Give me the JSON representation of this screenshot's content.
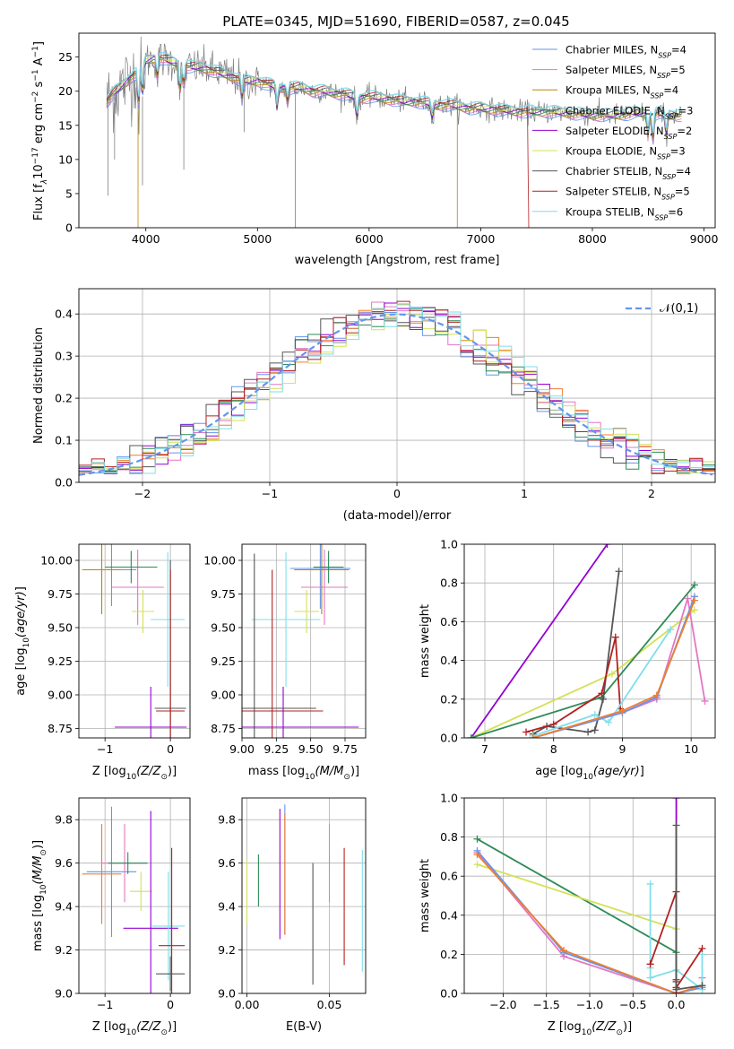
{
  "title": "PLATE=0345, MJD=51690, FIBERID=0587, z=0.045",
  "colors": {
    "Chabrier MILES": "#6495ed",
    "Salpeter MILES": "#e377c2",
    "Kroupa MILES": "#b8860b",
    "Chabrier ELODIE": "#2e8b57",
    "Salpeter ELODIE": "#9400d3",
    "Kroupa ELODIE": "#d4e157",
    "Chabrier STELIB": "#555555",
    "Salpeter STELIB": "#b22222",
    "Kroupa STELIB": "#80deea",
    "orange": "#f07f2f",
    "normal": "#6495ed"
  },
  "chart_data": [
    {
      "id": "spectrum",
      "type": "line",
      "title": "PLATE=0345, MJD=51690, FIBERID=0587, z=0.045",
      "xlabel": "wavelength [Angstrom, rest frame]",
      "ylabel_parts": [
        "Flux [f",
        "λ",
        "10",
        "−17",
        " erg cm",
        "−2",
        " s",
        "−1",
        " A",
        "−1",
        "]"
      ],
      "xlim": [
        3400,
        9100
      ],
      "ylim": [
        0,
        28.5
      ],
      "xticks": [
        4000,
        5000,
        6000,
        7000,
        8000,
        9000
      ],
      "yticks": [
        0,
        5,
        10,
        15,
        20,
        25
      ],
      "legend": [
        {
          "name": "Chabrier MILES",
          "nssp": "4"
        },
        {
          "name": "Salpeter MILES",
          "nssp": "5"
        },
        {
          "name": "Kroupa MILES",
          "nssp": "4"
        },
        {
          "name": "Chabrier ELODIE",
          "nssp": "3"
        },
        {
          "name": "Salpeter ELODIE",
          "nssp": "2"
        },
        {
          "name": "Kroupa ELODIE",
          "nssp": "3"
        },
        {
          "name": "Chabrier STELIB",
          "nssp": "4"
        },
        {
          "name": "Salpeter STELIB",
          "nssp": "5"
        },
        {
          "name": "Kroupa STELIB",
          "nssp": "6"
        }
      ],
      "nssp_label": "N",
      "nssp_sub": "SSP",
      "legend_placement": "top-right",
      "continuum": [
        [
          3650,
          18.5
        ],
        [
          3700,
          19.5
        ],
        [
          3800,
          21
        ],
        [
          3900,
          22.5
        ],
        [
          3950,
          24
        ],
        [
          4000,
          24.5
        ],
        [
          4100,
          25
        ],
        [
          4200,
          24.5
        ],
        [
          4300,
          24
        ],
        [
          4400,
          23.5
        ],
        [
          4500,
          23.5
        ],
        [
          4600,
          23
        ],
        [
          4700,
          22.5
        ],
        [
          4800,
          22
        ],
        [
          4900,
          21.5
        ],
        [
          5000,
          21.5
        ],
        [
          5100,
          21
        ],
        [
          5200,
          20.5
        ],
        [
          5300,
          20.5
        ],
        [
          5400,
          20.5
        ],
        [
          5500,
          20
        ],
        [
          5600,
          20
        ],
        [
          5700,
          19.7
        ],
        [
          5800,
          19.5
        ],
        [
          5900,
          19
        ],
        [
          6000,
          19.2
        ],
        [
          6100,
          19
        ],
        [
          6200,
          18.8
        ],
        [
          6300,
          18.5
        ],
        [
          6400,
          18.5
        ],
        [
          6500,
          18.3
        ],
        [
          6600,
          18
        ],
        [
          6700,
          18
        ],
        [
          6800,
          17.8
        ],
        [
          6900,
          17.5
        ],
        [
          7000,
          17.5
        ],
        [
          7200,
          17.2
        ],
        [
          7400,
          17
        ],
        [
          7600,
          17
        ],
        [
          7800,
          16.8
        ],
        [
          8000,
          16.5
        ],
        [
          8200,
          16.5
        ],
        [
          8400,
          16.8
        ],
        [
          8600,
          16.7
        ],
        [
          8800,
          16.5
        ]
      ]
    },
    {
      "id": "residual-hist",
      "type": "step-histogram",
      "xlabel": "(data-model)/error",
      "ylabel": "Normed distribution",
      "xlim": [
        -2.5,
        2.5
      ],
      "ylim": [
        0,
        0.46
      ],
      "xticks": [
        -2,
        -1,
        0,
        1,
        2
      ],
      "yticks": [
        0.0,
        0.1,
        0.2,
        0.3,
        0.4
      ],
      "grid": true,
      "legend_label": "𝒩(0,1)",
      "legend_placement": "top-right",
      "bin_width": 0.1,
      "normal": {
        "mean": 0,
        "sigma": 1
      }
    },
    {
      "id": "age-vs-z",
      "type": "errorbar",
      "xlabel_text": "Z [log",
      "ylabel_text": "age  [log",
      "xlim": [
        -1.4,
        0.3
      ],
      "ylim": [
        8.68,
        10.12
      ],
      "xticks": [
        -1,
        0
      ],
      "yticks": [
        8.75,
        9.0,
        9.25,
        9.5,
        9.75,
        10.0
      ],
      "grid": true,
      "points": [
        {
          "model": "Chabrier MILES",
          "x": -0.9,
          "xerr": 0.38,
          "y": 9.93,
          "yerr": 0.27
        },
        {
          "model": "Salpeter MILES",
          "x": -0.5,
          "xerr": 0.4,
          "y": 9.8,
          "yerr": 0.28
        },
        {
          "model": "Kroupa MILES",
          "x": -1.05,
          "xerr": 0.3,
          "y": 9.93,
          "yerr": 0.33
        },
        {
          "model": "Chabrier ELODIE",
          "x": -0.6,
          "xerr": 0.4,
          "y": 9.95,
          "yerr": 0.12
        },
        {
          "model": "Kroupa ELODIE",
          "x": -0.42,
          "xerr": 0.17,
          "y": 9.62,
          "yerr": 0.16
        },
        {
          "model": "Kroupa STELIB",
          "x": -0.04,
          "xerr": 0.26,
          "y": 9.56,
          "yerr": 0.5
        },
        {
          "model": "Chabrier STELIB",
          "x": 0.0,
          "xerr": 0.24,
          "y": 8.9,
          "yerr": 1.1
        },
        {
          "model": "Salpeter STELIB",
          "x": 0.0,
          "xerr": 0.22,
          "y": 8.88,
          "yerr": 1.05
        },
        {
          "model": "Salpeter ELODIE",
          "x": -0.3,
          "xerr": 0.55,
          "y": 8.76,
          "yerr": 0.3
        }
      ]
    },
    {
      "id": "age-vs-mass",
      "type": "errorbar",
      "xlabel_text": "mass [log",
      "xlim": [
        9.0,
        9.9
      ],
      "ylim": [
        8.68,
        10.12
      ],
      "xticks": [
        9.0,
        9.25,
        9.5,
        9.75
      ],
      "yticks": [
        8.75,
        9.0,
        9.25,
        9.5,
        9.75,
        10.0
      ],
      "grid": true,
      "points": [
        {
          "model": "Chabrier MILES",
          "x": 9.57,
          "xerr": 0.22,
          "y": 9.94,
          "yerr": 0.3
        },
        {
          "model": "Salpeter MILES",
          "x": 9.6,
          "xerr": 0.17,
          "y": 9.8,
          "yerr": 0.28
        },
        {
          "model": "Kroupa MILES",
          "x": 9.58,
          "xerr": 0.2,
          "y": 9.93,
          "yerr": 0.33
        },
        {
          "model": "Chabrier ELODIE",
          "x": 9.63,
          "xerr": 0.11,
          "y": 9.95,
          "yerr": 0.12
        },
        {
          "model": "Kroupa ELODIE",
          "x": 9.47,
          "xerr": 0.09,
          "y": 9.62,
          "yerr": 0.16
        },
        {
          "model": "Kroupa STELIB",
          "x": 9.32,
          "xerr": 0.25,
          "y": 9.56,
          "yerr": 0.5
        },
        {
          "model": "Chabrier STELIB",
          "x": 9.09,
          "xerr": 0.45,
          "y": 8.9,
          "yerr": 1.15
        },
        {
          "model": "Salpeter STELIB",
          "x": 9.22,
          "xerr": 0.37,
          "y": 8.88,
          "yerr": 1.05
        },
        {
          "model": "Salpeter ELODIE",
          "x": 9.3,
          "xerr": 0.55,
          "y": 8.76,
          "yerr": 0.3
        }
      ]
    },
    {
      "id": "weight-vs-age",
      "type": "line",
      "xlabel_text": "age  [log",
      "ylabel": "mass weight",
      "xlim": [
        6.7,
        10.35
      ],
      "ylim": [
        0,
        1.0
      ],
      "xticks": [
        7,
        8,
        9,
        10
      ],
      "yticks": [
        0.0,
        0.2,
        0.4,
        0.6,
        0.8,
        1.0
      ],
      "grid": true,
      "series": [
        {
          "model": "Salpeter ELODIE",
          "x": [
            6.8,
            8.78
          ],
          "y": [
            0.0,
            1.0
          ]
        },
        {
          "model": "Kroupa ELODIE",
          "x": [
            6.8,
            8.85,
            10.05
          ],
          "y": [
            0.0,
            0.33,
            0.66
          ]
        },
        {
          "model": "Chabrier ELODIE",
          "x": [
            6.8,
            8.7,
            10.05
          ],
          "y": [
            0.0,
            0.21,
            0.79
          ]
        },
        {
          "model": "Chabrier STELIB",
          "x": [
            7.7,
            7.9,
            8.5,
            8.6,
            8.72,
            8.95
          ],
          "y": [
            0.02,
            0.06,
            0.03,
            0.04,
            0.2,
            0.86
          ]
        },
        {
          "model": "Salpeter STELIB",
          "x": [
            7.6,
            8.0,
            8.7,
            8.9,
            8.97
          ],
          "y": [
            0.03,
            0.07,
            0.23,
            0.52,
            0.15
          ]
        },
        {
          "model": "Kroupa STELIB",
          "x": [
            7.7,
            8.6,
            8.8,
            9.7
          ],
          "y": [
            0.01,
            0.12,
            0.08,
            0.56
          ]
        },
        {
          "model": "Salpeter MILES",
          "x": [
            7.7,
            9.0,
            9.5,
            9.95,
            10.2
          ],
          "y": [
            0.0,
            0.13,
            0.2,
            0.72,
            0.19
          ]
        },
        {
          "model": "Chabrier MILES",
          "x": [
            7.7,
            9.0,
            9.5,
            10.05
          ],
          "y": [
            0.0,
            0.13,
            0.21,
            0.73
          ]
        },
        {
          "model": "orange",
          "x": [
            7.7,
            9.0,
            9.5,
            10.05
          ],
          "y": [
            0.0,
            0.14,
            0.22,
            0.71
          ]
        }
      ]
    },
    {
      "id": "mass-vs-z",
      "type": "errorbar",
      "xlabel_text": "Z [log",
      "ylabel_text": "mass [log",
      "xlim": [
        -1.4,
        0.3
      ],
      "ylim": [
        9.0,
        9.9
      ],
      "xticks": [
        -1,
        0
      ],
      "yticks": [
        9.0,
        9.2,
        9.4,
        9.6,
        9.8
      ],
      "grid": true,
      "points": [
        {
          "model": "Chabrier MILES",
          "x": -0.9,
          "xerr": 0.38,
          "y": 9.56,
          "yerr": 0.3
        },
        {
          "model": "orange",
          "x": -1.05,
          "xerr": 0.3,
          "y": 9.55,
          "yerr": 0.23
        },
        {
          "model": "Salpeter MILES",
          "x": -0.7,
          "xerr": 0.35,
          "y": 9.6,
          "yerr": 0.18
        },
        {
          "model": "Chabrier ELODIE",
          "x": -0.65,
          "xerr": 0.3,
          "y": 9.6,
          "yerr": 0.05
        },
        {
          "model": "Kroupa ELODIE",
          "x": -0.45,
          "xerr": 0.17,
          "y": 9.47,
          "yerr": 0.09
        },
        {
          "model": "Salpeter ELODIE",
          "x": -0.3,
          "xerr": 0.42,
          "y": 9.3,
          "yerr": 0.54
        },
        {
          "model": "Kroupa STELIB",
          "x": -0.03,
          "xerr": 0.25,
          "y": 9.31,
          "yerr": 0.25
        },
        {
          "model": "Salpeter STELIB",
          "x": 0.02,
          "xerr": 0.2,
          "y": 9.22,
          "yerr": 0.45
        },
        {
          "model": "Chabrier STELIB",
          "x": 0.0,
          "xerr": 0.22,
          "y": 9.09,
          "yerr": 0.08
        }
      ]
    },
    {
      "id": "mass-vs-ebv",
      "type": "errorbar",
      "xlabel": "E(B-V)",
      "xlim": [
        -0.003,
        0.072
      ],
      "ylim": [
        9.0,
        9.9
      ],
      "xticks": [
        0.0,
        0.05
      ],
      "yticks": [
        9.0,
        9.2,
        9.4,
        9.6,
        9.8
      ],
      "grid": true,
      "points": [
        {
          "model": "Kroupa ELODIE",
          "x": 0.0,
          "y": 9.47,
          "yerr": 0.15
        },
        {
          "model": "Chabrier ELODIE",
          "x": 0.007,
          "y": 9.52,
          "yerr": 0.12
        },
        {
          "model": "Salpeter ELODIE",
          "x": 0.02,
          "y": 9.55,
          "yerr": 0.3
        },
        {
          "model": "Chabrier MILES",
          "x": 0.023,
          "y": 9.57,
          "yerr": 0.3
        },
        {
          "model": "orange",
          "x": 0.023,
          "y": 9.55,
          "yerr": 0.28
        },
        {
          "model": "Chabrier STELIB",
          "x": 0.04,
          "y": 9.32,
          "yerr": 0.28
        },
        {
          "model": "Salpeter MILES",
          "x": 0.05,
          "y": 9.6,
          "yerr": 0.18
        },
        {
          "model": "Salpeter STELIB",
          "x": 0.059,
          "y": 9.4,
          "yerr": 0.27
        },
        {
          "model": "Kroupa STELIB",
          "x": 0.07,
          "y": 9.38,
          "yerr": 0.28
        }
      ]
    },
    {
      "id": "weight-vs-z",
      "type": "line",
      "xlabel_text": "Z [log",
      "ylabel": "mass weight",
      "xlim": [
        -2.45,
        0.45
      ],
      "ylim": [
        0,
        1.0
      ],
      "xticks": [
        -2.0,
        -1.5,
        -1.0,
        -0.5,
        0.0
      ],
      "yticks": [
        0.0,
        0.2,
        0.4,
        0.6,
        0.8,
        1.0
      ],
      "grid": true,
      "series": [
        {
          "model": "Chabrier ELODIE",
          "x": [
            -2.3,
            0.0
          ],
          "y": [
            0.79,
            0.21
          ]
        },
        {
          "model": "Kroupa ELODIE",
          "x": [
            -2.3,
            0.0
          ],
          "y": [
            0.66,
            0.33
          ]
        },
        {
          "model": "Salpeter MILES",
          "x": [
            -2.3,
            -1.3,
            0.0,
            0.3,
            0.3
          ],
          "y": [
            0.72,
            0.19,
            0.0,
            0.04,
            0.08
          ]
        },
        {
          "model": "Chabrier MILES",
          "x": [
            -2.3,
            -1.3,
            0.0,
            0.3
          ],
          "y": [
            0.73,
            0.21,
            0.0,
            0.03
          ]
        },
        {
          "model": "orange",
          "x": [
            -2.3,
            -1.3,
            0.0,
            0.3
          ],
          "y": [
            0.71,
            0.22,
            0.0,
            0.04
          ]
        },
        {
          "model": "Kroupa STELIB",
          "x": [
            -0.3,
            -0.3,
            -0.3,
            0.0,
            0.3,
            0.3
          ],
          "y": [
            0.56,
            0.13,
            0.08,
            0.12,
            0.02,
            0.2
          ]
        },
        {
          "model": "Salpeter STELIB",
          "x": [
            -0.3,
            0.0,
            0.0,
            0.0,
            0.3
          ],
          "y": [
            0.15,
            0.52,
            0.07,
            0.03,
            0.23
          ]
        },
        {
          "model": "Salpeter ELODIE",
          "x": [
            0.0,
            0.0
          ],
          "y": [
            0.0,
            1.0
          ]
        },
        {
          "model": "Chabrier STELIB",
          "x": [
            0.0,
            0.0,
            0.0,
            0.3
          ],
          "y": [
            0.86,
            0.06,
            0.02,
            0.04
          ]
        }
      ]
    }
  ]
}
